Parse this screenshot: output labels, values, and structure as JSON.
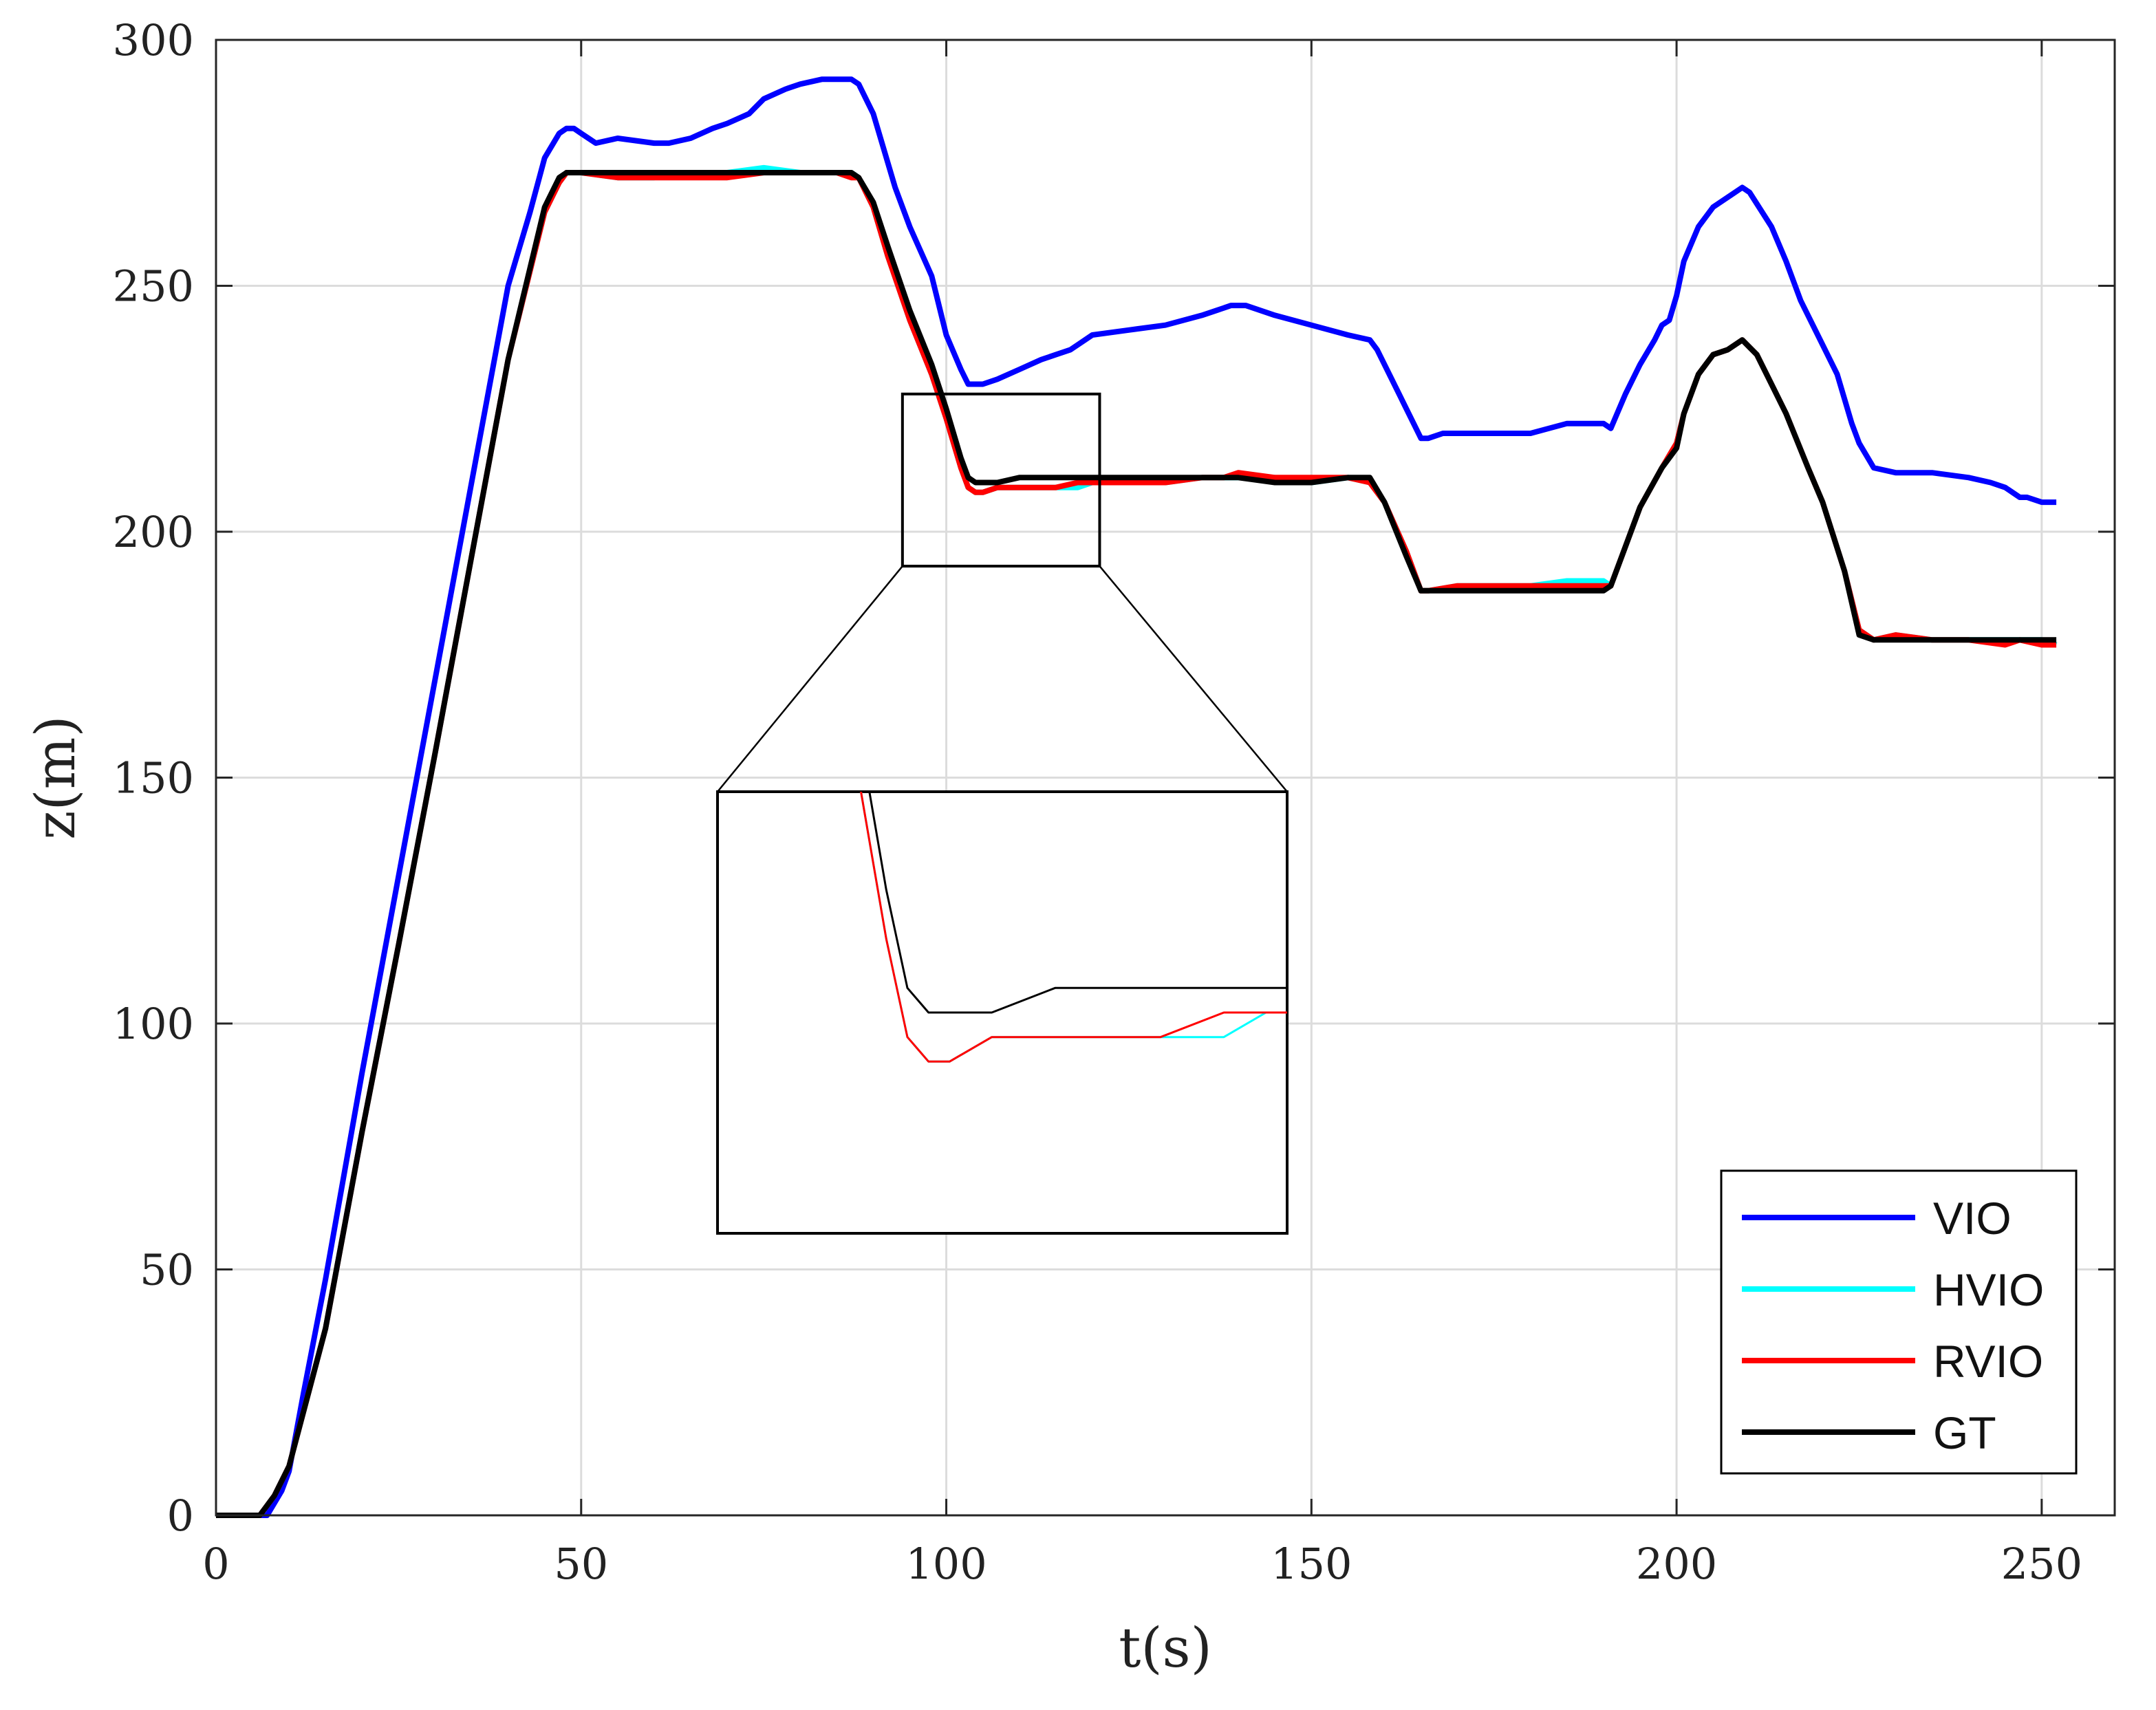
{
  "chart_data": {
    "type": "line",
    "title": "",
    "xlabel": "t(s)",
    "ylabel": "z(m)",
    "xlim": [
      0,
      260
    ],
    "ylim": [
      0,
      300
    ],
    "xticks": [
      0,
      50,
      100,
      150,
      200,
      250
    ],
    "yticks": [
      0,
      50,
      100,
      150,
      200,
      250,
      300
    ],
    "grid": true,
    "legend_position": "bottom-right",
    "series": [
      {
        "name": "VIO",
        "color": "#0000ff",
        "x": [
          0,
          5,
          7,
          9,
          10,
          12,
          15,
          20,
          25,
          30,
          35,
          40,
          43,
          45,
          47,
          48,
          49,
          50,
          51,
          52,
          55,
          60,
          62,
          65,
          68,
          70,
          73,
          75,
          78,
          80,
          83,
          85,
          87,
          88,
          90,
          93,
          95,
          98,
          100,
          102,
          103,
          104,
          105,
          107,
          110,
          113,
          115,
          117,
          118,
          120,
          125,
          130,
          135,
          137,
          139,
          141,
          145,
          150,
          155,
          158,
          159,
          161,
          163,
          165,
          166,
          168,
          170,
          175,
          180,
          185,
          188,
          190,
          191,
          193,
          195,
          197,
          198,
          199,
          200,
          201,
          203,
          205,
          207,
          208,
          209,
          210,
          213,
          215,
          217,
          220,
          222,
          224,
          225,
          227,
          230,
          235,
          240,
          243,
          245,
          247,
          248,
          250,
          252
        ],
        "y": [
          0,
          0,
          0,
          5,
          9,
          25,
          48,
          90,
          130,
          170,
          210,
          250,
          265,
          276,
          281,
          282,
          282,
          281,
          280,
          279,
          280,
          279,
          279,
          280,
          282,
          283,
          285,
          288,
          290,
          291,
          292,
          292,
          292,
          291,
          285,
          270,
          262,
          252,
          240,
          233,
          230,
          230,
          230,
          231,
          233,
          235,
          236,
          237,
          238,
          240,
          241,
          242,
          244,
          245,
          246,
          246,
          244,
          242,
          240,
          239,
          237,
          231,
          225,
          219,
          219,
          220,
          220,
          220,
          220,
          222,
          222,
          222,
          221,
          228,
          234,
          239,
          242,
          243,
          248,
          255,
          262,
          266,
          268,
          269,
          270,
          269,
          262,
          255,
          247,
          238,
          232,
          222,
          218,
          213,
          212,
          212,
          211,
          210,
          209,
          207,
          207,
          206,
          206
        ]
      },
      {
        "name": "HVIO",
        "color": "#00ffff",
        "x": [
          0,
          5,
          6,
          8,
          10,
          15,
          20,
          25,
          30,
          35,
          40,
          45,
          47,
          48,
          49,
          50,
          55,
          60,
          65,
          70,
          75,
          80,
          85,
          87,
          88,
          90,
          92,
          95,
          98,
          100,
          102,
          103,
          104,
          105,
          107,
          110,
          115,
          118,
          120,
          125,
          130,
          135,
          140,
          145,
          150,
          155,
          158,
          160,
          163,
          165,
          166,
          170,
          175,
          180,
          185,
          190,
          191,
          193,
          195,
          198,
          200,
          201,
          203,
          205,
          207,
          208,
          209,
          211,
          213,
          215,
          218,
          220,
          223,
          225,
          227,
          230,
          235,
          240,
          245,
          247,
          250,
          252
        ],
        "y": [
          0,
          0,
          0,
          4,
          10,
          38,
          78,
          116,
          155,
          195,
          235,
          265,
          271,
          273,
          273,
          273,
          272,
          272,
          273,
          273,
          274,
          273,
          273,
          273,
          272,
          266,
          256,
          243,
          232,
          223,
          213,
          209,
          208,
          208,
          209,
          209,
          209,
          209,
          210,
          210,
          210,
          211,
          211,
          211,
          210,
          211,
          210,
          206,
          196,
          188,
          188,
          189,
          189,
          189,
          190,
          190,
          189,
          197,
          205,
          213,
          218,
          224,
          232,
          236,
          237,
          238,
          239,
          236,
          230,
          224,
          213,
          206,
          192,
          180,
          178,
          179,
          178,
          178,
          178,
          178,
          178,
          177
        ]
      },
      {
        "name": "RVIO",
        "color": "#ff0000",
        "x": [
          0,
          5,
          6,
          8,
          10,
          15,
          20,
          25,
          30,
          35,
          40,
          45,
          47,
          48,
          49,
          50,
          55,
          60,
          62,
          65,
          70,
          75,
          80,
          85,
          87,
          88,
          90,
          92,
          95,
          98,
          100,
          102,
          103,
          104,
          105,
          107,
          110,
          115,
          118,
          120,
          125,
          130,
          135,
          138,
          140,
          145,
          150,
          155,
          158,
          160,
          163,
          165,
          166,
          170,
          175,
          180,
          185,
          190,
          191,
          193,
          195,
          198,
          200,
          201,
          203,
          205,
          207,
          208,
          209,
          211,
          213,
          215,
          218,
          220,
          223,
          225,
          227,
          230,
          235,
          240,
          245,
          247,
          250,
          252
        ],
        "y": [
          0,
          0,
          0,
          4,
          10,
          38,
          78,
          116,
          155,
          195,
          235,
          265,
          271,
          273,
          273,
          273,
          272,
          272,
          272,
          272,
          272,
          273,
          273,
          273,
          272,
          272,
          266,
          256,
          243,
          232,
          223,
          213,
          209,
          208,
          208,
          209,
          209,
          209,
          210,
          210,
          210,
          210,
          211,
          211,
          212,
          211,
          211,
          211,
          210,
          206,
          196,
          188,
          188,
          189,
          189,
          189,
          189,
          189,
          189,
          197,
          205,
          213,
          218,
          224,
          232,
          236,
          237,
          238,
          239,
          236,
          230,
          224,
          213,
          206,
          192,
          180,
          178,
          179,
          178,
          178,
          177,
          178,
          177,
          177
        ]
      },
      {
        "name": "GT",
        "color": "#000000",
        "x": [
          0,
          5,
          6,
          8,
          10,
          15,
          20,
          25,
          30,
          35,
          40,
          45,
          47,
          48,
          49,
          50,
          55,
          60,
          65,
          70,
          75,
          80,
          85,
          87,
          88,
          90,
          92,
          95,
          98,
          100,
          102,
          103,
          104,
          105,
          107,
          110,
          115,
          118,
          120,
          125,
          130,
          135,
          140,
          145,
          150,
          155,
          158,
          160,
          163,
          165,
          166,
          170,
          175,
          180,
          185,
          190,
          191,
          193,
          195,
          198,
          200,
          201,
          203,
          205,
          207,
          208,
          209,
          211,
          213,
          215,
          218,
          220,
          223,
          225,
          227,
          230,
          235,
          240,
          245,
          247,
          250,
          252
        ],
        "y": [
          0,
          0,
          0,
          4,
          10,
          38,
          78,
          116,
          155,
          195,
          235,
          266,
          272,
          273,
          273,
          273,
          273,
          273,
          273,
          273,
          273,
          273,
          273,
          273,
          272,
          267,
          258,
          245,
          234,
          225,
          215,
          211,
          210,
          210,
          210,
          211,
          211,
          211,
          211,
          211,
          211,
          211,
          211,
          210,
          210,
          211,
          211,
          206,
          195,
          188,
          188,
          188,
          188,
          188,
          188,
          188,
          189,
          197,
          205,
          213,
          217,
          224,
          232,
          236,
          237,
          238,
          239,
          236,
          230,
          224,
          213,
          206,
          192,
          179,
          178,
          178,
          178,
          178,
          178,
          178,
          178,
          178
        ]
      }
    ],
    "inset": {
      "source_xlim": [
        94,
        121
      ],
      "source_ylim": [
        193,
        228
      ],
      "zoom_xlim": [
        94,
        121
      ],
      "zoom_ylim": [
        201,
        219
      ]
    }
  }
}
